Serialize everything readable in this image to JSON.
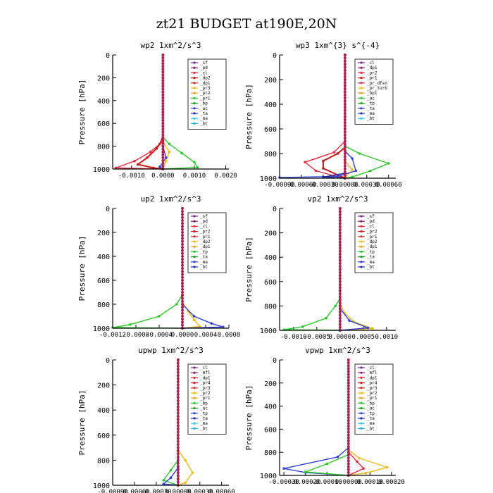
{
  "figure_title": "zt21  BUDGET at190E,20N",
  "chart_data": [
    {
      "type": "line",
      "title": "wp2   1xm^2/s^3",
      "xlabel": "",
      "ylabel": "Pressure [hPa]",
      "xlim": [
        -0.0016,
        0.0021
      ],
      "ylim": [
        1000,
        0
      ],
      "xticks": [
        -0.001,
        0.0,
        0.001,
        0.002
      ],
      "xtick_labels": [
        "-0.0010",
        "0.0000",
        "0.0010",
        "0.0020"
      ],
      "yticks": [
        0,
        200,
        400,
        600,
        800,
        1000
      ],
      "legend": [
        "_sf",
        "_pd",
        "_cl",
        "_dp2",
        "_dp1",
        "_pr3",
        "_pr2",
        "_pr1",
        "_bp",
        "_ac",
        "_ta",
        "_ma",
        "_bt"
      ],
      "series": [
        {
          "name": "_pd",
          "color": "#e8283c",
          "points": [
            [
              0,
              0
            ],
            [
              0,
              700
            ],
            [
              -0.0001,
              780
            ],
            [
              -0.0004,
              850
            ],
            [
              -0.0009,
              930
            ],
            [
              -0.0015,
              990
            ],
            [
              0,
              1000
            ]
          ]
        },
        {
          "name": "_dp1",
          "color": "#d01818",
          "points": [
            [
              0,
              0
            ],
            [
              0,
              740
            ],
            [
              -0.0002,
              820
            ],
            [
              -0.0005,
              900
            ],
            [
              -0.0008,
              960
            ],
            [
              -0.0003,
              990
            ],
            [
              0,
              1000
            ]
          ]
        },
        {
          "name": "_bp",
          "color": "#28c828",
          "points": [
            [
              0,
              0
            ],
            [
              0,
              720
            ],
            [
              0.0002,
              780
            ],
            [
              0.0006,
              860
            ],
            [
              0.001,
              940
            ],
            [
              0.0011,
              985
            ],
            [
              0,
              1000
            ]
          ]
        },
        {
          "name": "_pr3",
          "color": "#f0b818",
          "points": [
            [
              0,
              0
            ],
            [
              0,
              760
            ],
            [
              0.0002,
              850
            ],
            [
              0.0001,
              930
            ],
            [
              0,
              1000
            ]
          ]
        },
        {
          "name": "_ta",
          "color": "#3040d8",
          "points": [
            [
              0,
              0
            ],
            [
              0,
              800
            ],
            [
              0.0001,
              900
            ],
            [
              -0.0001,
              980
            ],
            [
              0,
              1000
            ]
          ]
        },
        {
          "name": "_ma",
          "color": "#2cc8e8",
          "points": [
            [
              0,
              0
            ],
            [
              0,
              1000
            ]
          ]
        },
        {
          "name": "_bt",
          "color": "#7a2a8a",
          "points": [
            [
              0,
              0
            ],
            [
              0,
              1000
            ]
          ]
        }
      ]
    },
    {
      "type": "line",
      "title": "wp3   1xm^{3} s^{-4}",
      "xlabel": "",
      "ylabel": "Pressure [hPa]",
      "xlim": [
        -0.0009,
        0.0007
      ],
      "ylim": [
        1000,
        0
      ],
      "xticks": [
        -0.0009,
        -0.0006,
        -0.0003,
        0.0,
        0.0003,
        0.0006
      ],
      "xtick_labels": [
        "-0.00090",
        "-0.00060",
        "-0.00030",
        "0.00000",
        "0.00030",
        "0.00060"
      ],
      "yticks": [
        0,
        200,
        400,
        600,
        800,
        1000
      ],
      "legend": [
        "_cl",
        "_dp1",
        "_pr2",
        "_pr1",
        "_pr_dfsn",
        "_pr_turb",
        "_bp1",
        "_ac",
        "_tp",
        "_ta",
        "_ma",
        "_bt"
      ],
      "series": [
        {
          "name": "_pr1",
          "color": "#e8283c",
          "points": [
            [
              0,
              0
            ],
            [
              0,
              700
            ],
            [
              -0.00015,
              790
            ],
            [
              -0.00055,
              870
            ],
            [
              -0.0004,
              940
            ],
            [
              -0.00015,
              980
            ],
            [
              0,
              1000
            ]
          ]
        },
        {
          "name": "_dp1",
          "color": "#c01818",
          "points": [
            [
              0,
              0
            ],
            [
              0,
              750
            ],
            [
              -0.0001,
              800
            ],
            [
              -0.0003,
              860
            ],
            [
              -0.0003,
              920
            ],
            [
              0,
              1000
            ]
          ]
        },
        {
          "name": "_bp1",
          "color": "#28c828",
          "points": [
            [
              0,
              0
            ],
            [
              0,
              740
            ],
            [
              0.0002,
              800
            ],
            [
              0.0006,
              880
            ],
            [
              0.00035,
              940
            ],
            [
              0.0001,
              990
            ],
            [
              0,
              1000
            ]
          ]
        },
        {
          "name": "_pr2",
          "color": "#f0b818",
          "points": [
            [
              0,
              0
            ],
            [
              0,
              860
            ],
            [
              0.0001,
              930
            ],
            [
              0,
              1000
            ]
          ]
        },
        {
          "name": "_tp",
          "color": "#3040d8",
          "points": [
            [
              0,
              0
            ],
            [
              0,
              780
            ],
            [
              0.0001,
              840
            ],
            [
              0.00015,
              940
            ],
            [
              -0.0001,
              985
            ],
            [
              -0.0009,
              995
            ]
          ]
        },
        {
          "name": "_ta",
          "color": "#1d2f9b",
          "points": [
            [
              0,
              0
            ],
            [
              0,
              960
            ],
            [
              -0.0003,
              990
            ],
            [
              0,
              1000
            ]
          ]
        },
        {
          "name": "_bt",
          "color": "#7a2a8a",
          "points": [
            [
              0,
              0
            ],
            [
              0,
              1000
            ]
          ]
        }
      ]
    },
    {
      "type": "line",
      "title": "up2   1xm^2/s^3",
      "xlabel": "",
      "ylabel": "Pressure [hPa]",
      "xlim": [
        -0.0012,
        0.0008
      ],
      "ylim": [
        1000,
        0
      ],
      "xticks": [
        -0.0012,
        -0.0008,
        -0.0004,
        0.0,
        0.0004,
        0.0008
      ],
      "xtick_labels": [
        "-0.0012",
        "-0.0008",
        "-0.0004",
        "0.0000",
        "0.0004",
        "0.0008"
      ],
      "yticks": [
        0,
        200,
        400,
        600,
        800,
        1000
      ],
      "legend": [
        "_sf",
        "_pd",
        "_cl",
        "_pr2",
        "_pr1",
        "_dp2",
        "_dp1",
        "_tp",
        "_ta",
        "_ma",
        "_bt"
      ],
      "series": [
        {
          "name": "_pr1",
          "color": "#28c828",
          "points": [
            [
              0,
              0
            ],
            [
              0,
              720
            ],
            [
              -0.0001,
              800
            ],
            [
              -0.0004,
              900
            ],
            [
              -0.0009,
              970
            ],
            [
              -0.0012,
              995
            ],
            [
              0,
              1000
            ]
          ]
        },
        {
          "name": "_pr2",
          "color": "#f0b818",
          "points": [
            [
              0,
              0
            ],
            [
              0,
              780
            ],
            [
              0.0001,
              860
            ],
            [
              0.0002,
              930
            ],
            [
              0.0003,
              985
            ],
            [
              0,
              1000
            ]
          ]
        },
        {
          "name": "_ta",
          "color": "#3040d8",
          "points": [
            [
              0,
              0
            ],
            [
              0,
              800
            ],
            [
              0.0002,
              900
            ],
            [
              0.0005,
              960
            ],
            [
              0.0007,
              990
            ],
            [
              0,
              1000
            ]
          ]
        },
        {
          "name": "_dp1",
          "color": "#d01818",
          "points": [
            [
              0,
              0
            ],
            [
              0,
              1000
            ]
          ]
        },
        {
          "name": "_bt",
          "color": "#7a2a8a",
          "points": [
            [
              0,
              0
            ],
            [
              0,
              1000
            ]
          ]
        }
      ]
    },
    {
      "type": "line",
      "title": "vp2   1xm^2/s^3",
      "xlabel": "",
      "ylabel": "Pressure [hPa]",
      "xlim": [
        -0.0013,
        0.0012
      ],
      "ylim": [
        1000,
        0
      ],
      "xticks": [
        -0.001,
        -0.0005,
        0.0,
        0.0005,
        0.001
      ],
      "xtick_labels": [
        "-0.0010",
        "-0.0005",
        "0.0000",
        "0.0005",
        "0.0010"
      ],
      "yticks": [
        0,
        200,
        400,
        600,
        800,
        1000
      ],
      "legend": [
        "_sf",
        "_pd",
        "_cl",
        "_pr2",
        "_pr1",
        "_dp2",
        "_dp1",
        "_tp",
        "_ta",
        "_ma",
        "_bt"
      ],
      "series": [
        {
          "name": "_pr1",
          "color": "#28c828",
          "points": [
            [
              0,
              0
            ],
            [
              0,
              740
            ],
            [
              -0.0001,
              800
            ],
            [
              -0.0003,
              900
            ],
            [
              -0.0008,
              970
            ],
            [
              -0.0012,
              995
            ],
            [
              0,
              1000
            ]
          ]
        },
        {
          "name": "_pr2",
          "color": "#f0b818",
          "points": [
            [
              0,
              0
            ],
            [
              0,
              780
            ],
            [
              0.0001,
              860
            ],
            [
              0.0003,
              930
            ],
            [
              0.0007,
              985
            ],
            [
              0,
              1000
            ]
          ]
        },
        {
          "name": "_ta",
          "color": "#3040d8",
          "points": [
            [
              0,
              0
            ],
            [
              0,
              820
            ],
            [
              0.0002,
              920
            ],
            [
              0.0006,
              980
            ],
            [
              0,
              1000
            ]
          ]
        },
        {
          "name": "_dp1",
          "color": "#d01818",
          "points": [
            [
              0,
              0
            ],
            [
              0,
              1000
            ]
          ]
        },
        {
          "name": "_bt",
          "color": "#7a2a8a",
          "points": [
            [
              0,
              0
            ],
            [
              0,
              1000
            ]
          ]
        }
      ]
    },
    {
      "type": "line",
      "title": "upwp   1xm^2/s^3",
      "xlabel": "",
      "ylabel": "Pressure [hPa]",
      "xlim": [
        -0.0009,
        0.0007
      ],
      "ylim": [
        1000,
        0
      ],
      "xticks": [
        -0.0009,
        -0.0006,
        -0.0003,
        0.0,
        0.0003,
        0.0006
      ],
      "xtick_labels": [
        "-0.00090",
        "-0.00060",
        "-0.00030",
        "0.00000",
        "0.00030",
        "0.00060"
      ],
      "yticks": [
        0,
        200,
        400,
        600,
        800,
        1000
      ],
      "legend": [
        "_cl",
        "_mfl",
        "_dp1",
        "_pr4",
        "_pr3",
        "_pr2",
        "_pr1",
        "_bp",
        "_ac",
        "_tp",
        "_ta",
        "_ma",
        "_bt"
      ],
      "series": [
        {
          "name": "_pr2",
          "color": "#f0b818",
          "points": [
            [
              0,
              0
            ],
            [
              0,
              720
            ],
            [
              0.0001,
              800
            ],
            [
              0.0002,
              900
            ],
            [
              0.0001,
              980
            ],
            [
              0,
              1000
            ]
          ]
        },
        {
          "name": "_bp",
          "color": "#28c828",
          "points": [
            [
              0,
              0
            ],
            [
              0,
              800
            ],
            [
              -0.0001,
              880
            ],
            [
              -0.0002,
              960
            ],
            [
              0,
              1000
            ]
          ]
        },
        {
          "name": "_tp",
          "color": "#3040d8",
          "points": [
            [
              0,
              0
            ],
            [
              0,
              860
            ],
            [
              -0.0001,
              940
            ],
            [
              -0.0002,
              990
            ],
            [
              0,
              1000
            ]
          ]
        },
        {
          "name": "_dp1",
          "color": "#d01818",
          "points": [
            [
              0,
              0
            ],
            [
              0,
              1000
            ]
          ]
        },
        {
          "name": "_bt",
          "color": "#7a2a8a",
          "points": [
            [
              0,
              0
            ],
            [
              0,
              1000
            ]
          ]
        }
      ]
    },
    {
      "type": "line",
      "title": "vpwp   1xm^2/s^3",
      "xlabel": "",
      "ylabel": "Pressure [hPa]",
      "xlim": [
        -0.00032,
        0.00022
      ],
      "ylim": [
        1000,
        0
      ],
      "xticks": [
        -0.0003,
        -0.0002,
        -0.0001,
        0.0,
        0.0001,
        0.0002
      ],
      "xtick_labels": [
        "-0.00030",
        "-0.00020",
        "-0.00010",
        "0.00000",
        "0.00010",
        "0.00020"
      ],
      "yticks": [
        0,
        200,
        400,
        600,
        800,
        1000
      ],
      "legend": [
        "_cl",
        "_mfl",
        "_dp1",
        "_pr4",
        "_pr3",
        "_pr2",
        "_pr1",
        "_bp",
        "_ac",
        "_tp",
        "_ta",
        "_ma",
        "_bt"
      ],
      "series": [
        {
          "name": "_pr2",
          "color": "#f0b818",
          "points": [
            [
              0,
              0
            ],
            [
              0,
              780
            ],
            [
              5e-05,
              850
            ],
            [
              0.00018,
              930
            ],
            [
              8e-05,
              980
            ],
            [
              0,
              1000
            ]
          ]
        },
        {
          "name": "_pr1",
          "color": "#e8283c",
          "points": [
            [
              0,
              0
            ],
            [
              0,
              800
            ],
            [
              4e-05,
              880
            ],
            [
              7e-05,
              940
            ],
            [
              0,
              1000
            ]
          ]
        },
        {
          "name": "_tp",
          "color": "#3040d8",
          "points": [
            [
              0,
              0
            ],
            [
              0,
              760
            ],
            [
              -5e-05,
              840
            ],
            [
              -0.0003,
              940
            ],
            [
              -0.0002,
              975
            ],
            [
              0,
              1000
            ]
          ]
        },
        {
          "name": "_bp",
          "color": "#28c828",
          "points": [
            [
              0,
              0
            ],
            [
              0,
              820
            ],
            [
              -0.0001,
              900
            ],
            [
              -0.0002,
              970
            ],
            [
              0,
              1000
            ]
          ]
        },
        {
          "name": "_dp1",
          "color": "#d01818",
          "points": [
            [
              0,
              0
            ],
            [
              0,
              1000
            ]
          ]
        },
        {
          "name": "_bt",
          "color": "#7a2a8a",
          "points": [
            [
              0,
              0
            ],
            [
              0,
              1000
            ]
          ]
        }
      ]
    }
  ]
}
